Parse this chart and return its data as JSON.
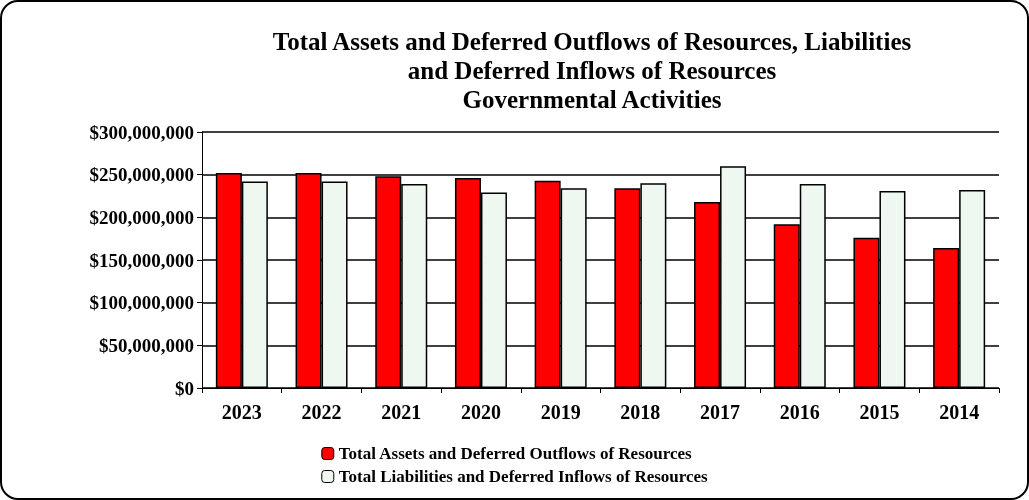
{
  "chart_data": {
    "type": "bar",
    "title": "Total Assets and Deferred Outflows of Resources, Liabilities\nand Deferred Inflows of Resources\nGovernmental Activities",
    "categories": [
      "2023",
      "2022",
      "2021",
      "2020",
      "2019",
      "2018",
      "2017",
      "2016",
      "2015",
      "2014"
    ],
    "series": [
      {
        "name": "Total Assets and Deferred Outflows of Resources",
        "color": "#ff0000",
        "values": [
          252000000,
          252000000,
          248000000,
          246000000,
          243000000,
          234000000,
          218000000,
          192000000,
          176000000,
          164000000
        ]
      },
      {
        "name": "Total Liabilities and Deferred Inflows of Resources",
        "color": "#eef8f0",
        "values": [
          242000000,
          242000000,
          239000000,
          229000000,
          234000000,
          240000000,
          260000000,
          239000000,
          231000000,
          232000000
        ]
      }
    ],
    "ylim": [
      0,
      300000000
    ],
    "yticks": [
      {
        "value": 0,
        "label": "$0"
      },
      {
        "value": 50000000,
        "label": "$50,000,000"
      },
      {
        "value": 100000000,
        "label": "$100,000,000"
      },
      {
        "value": 150000000,
        "label": "$150,000,000"
      },
      {
        "value": 200000000,
        "label": "$200,000,000"
      },
      {
        "value": 250000000,
        "label": "$250,000,000"
      },
      {
        "value": 300000000,
        "label": "$300,000,000"
      }
    ],
    "grid": "y",
    "legend": "bottom"
  }
}
